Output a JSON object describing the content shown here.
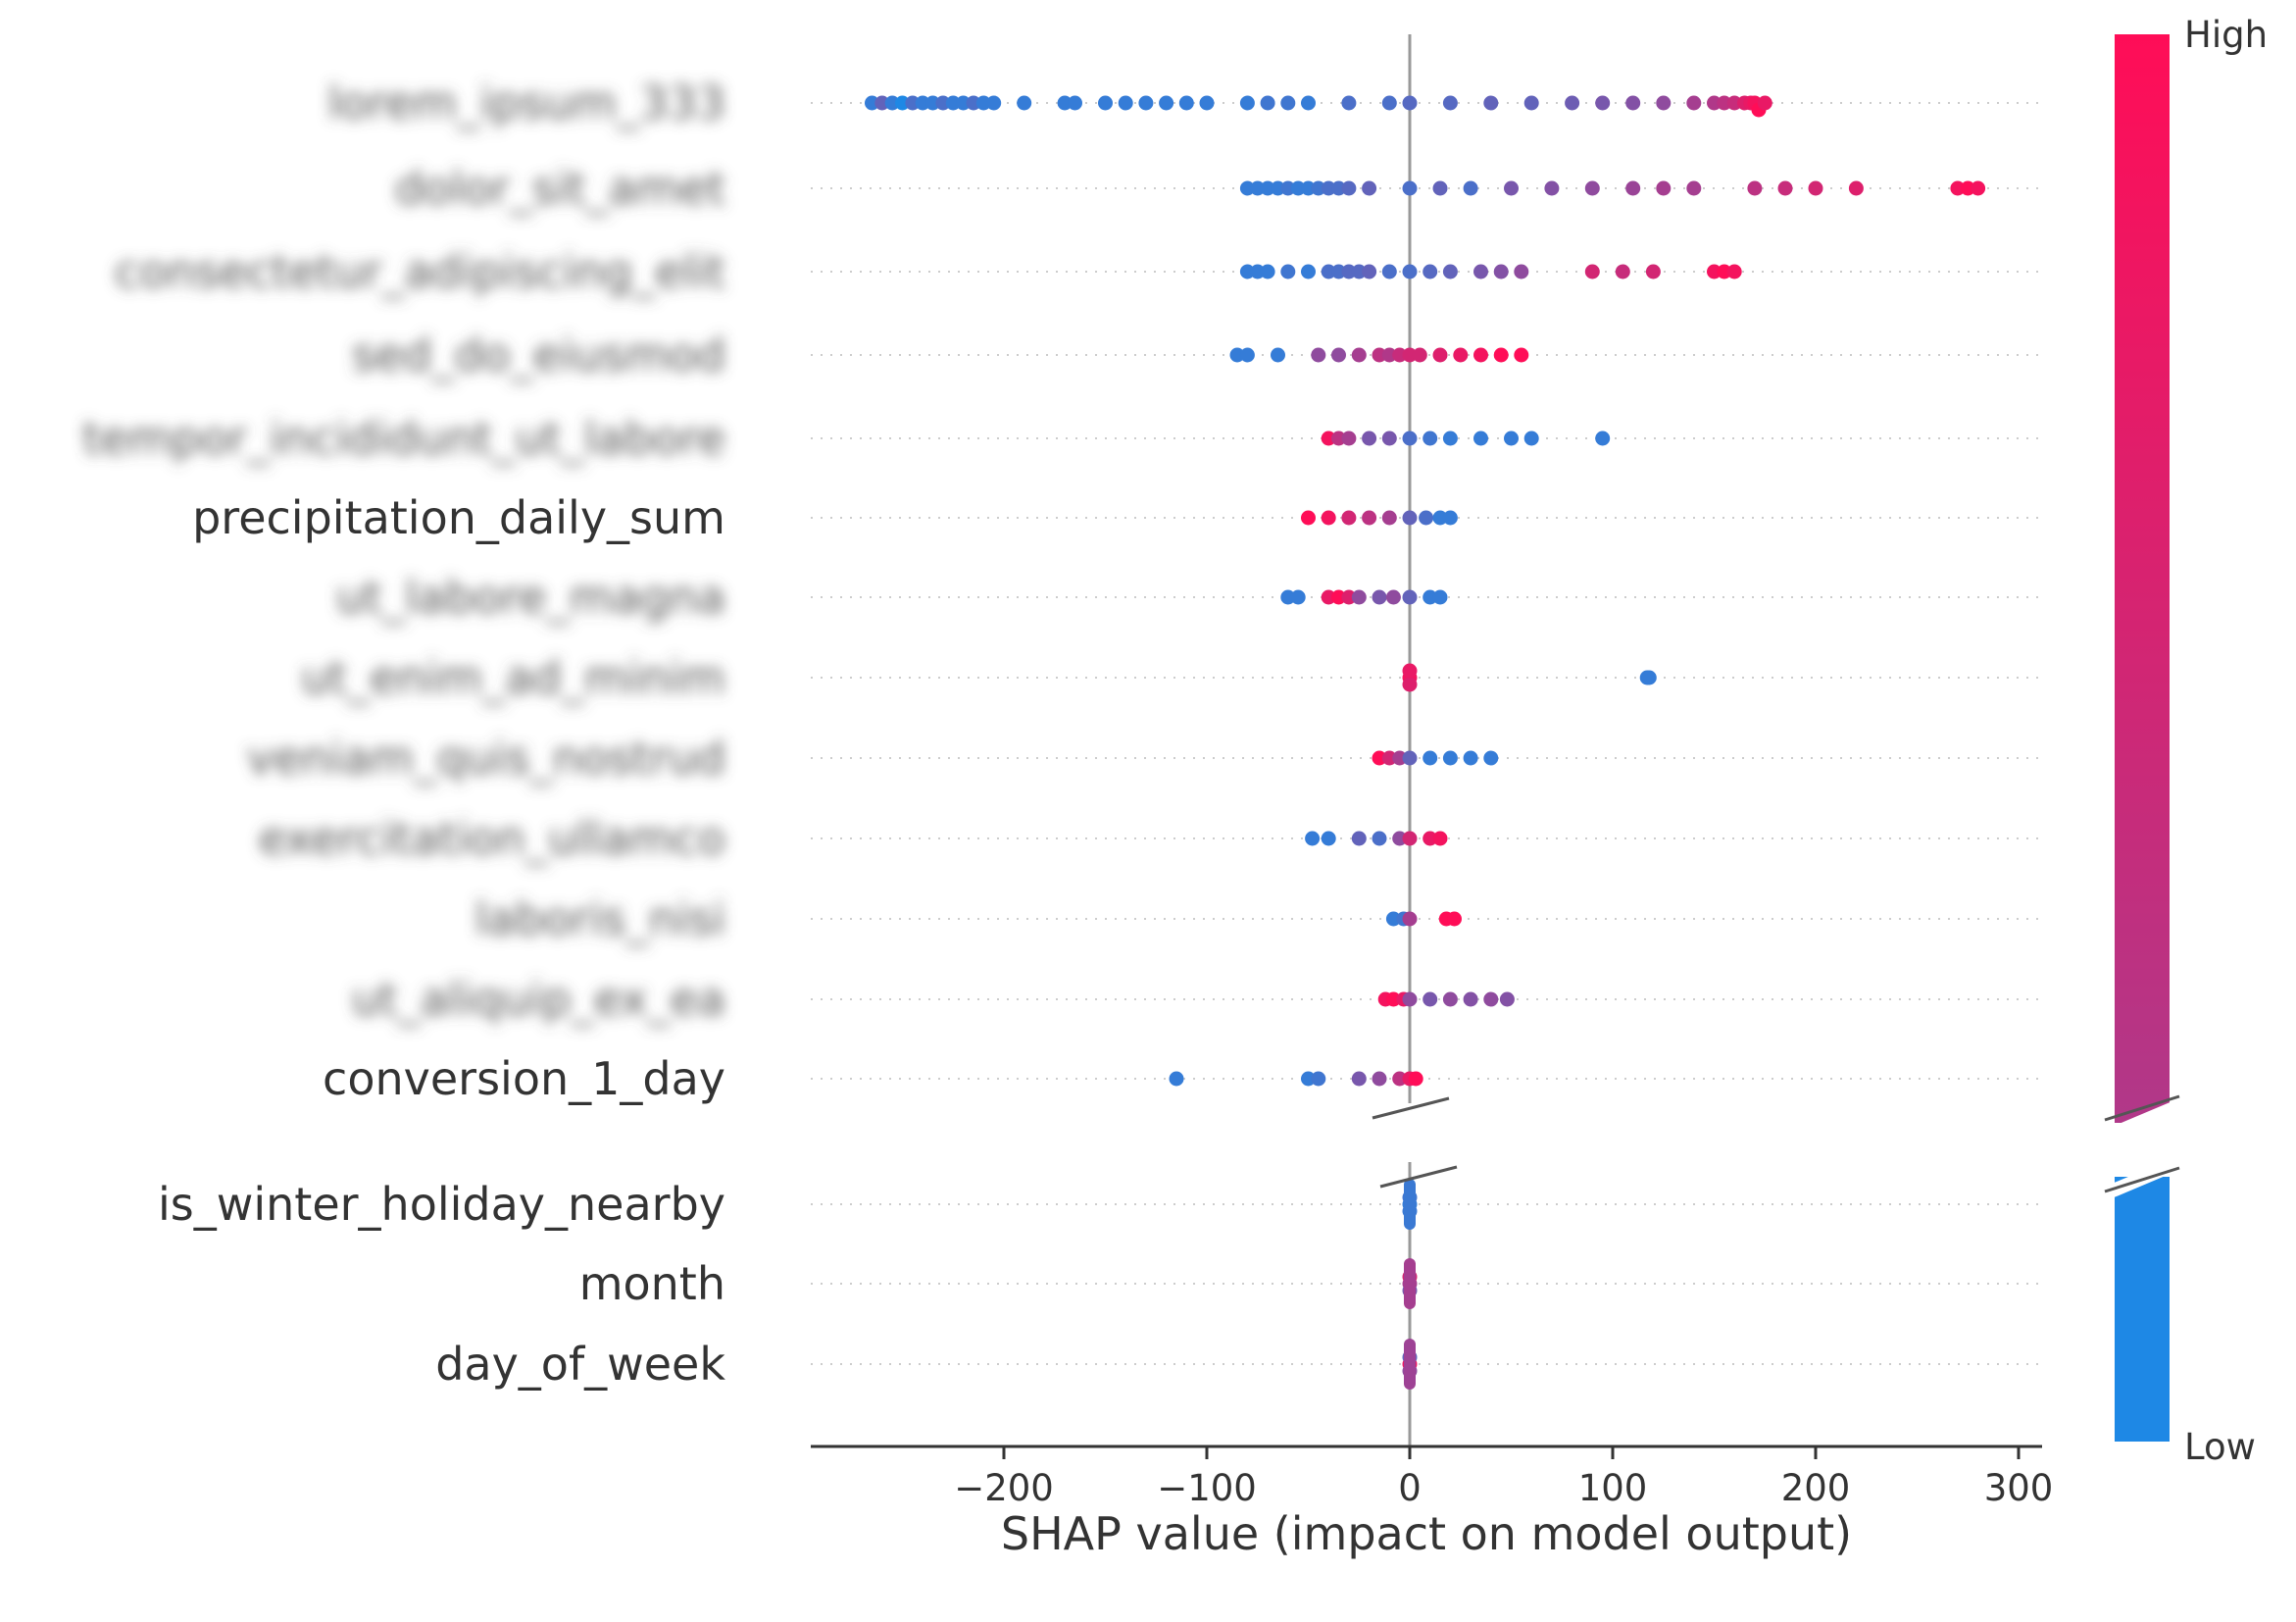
{
  "chart_data": {
    "type": "scatter",
    "subtype": "shap-beeswarm-summary",
    "xlabel": "SHAP value (impact on model output)",
    "xlim": [
      -300,
      310
    ],
    "xticks": [
      -200,
      -100,
      0,
      100,
      200,
      300
    ],
    "xtick_labels": [
      "−200",
      "−100",
      "0",
      "100",
      "200",
      "300"
    ],
    "colorbar": {
      "high_label": "High",
      "low_label": "Low",
      "high_color": "#ff0d57",
      "low_color": "#1e88e5"
    },
    "axis_break": true,
    "features": [
      {
        "label": "lorem_ipsum_333",
        "blurred": true,
        "points": [
          [
            -265,
            0.1
          ],
          [
            -260,
            0.3
          ],
          [
            -255,
            0.1
          ],
          [
            -250,
            0.0
          ],
          [
            -245,
            0.2
          ],
          [
            -240,
            0.1
          ],
          [
            -235,
            0.1
          ],
          [
            -230,
            0.2
          ],
          [
            -225,
            0.1
          ],
          [
            -220,
            0.1
          ],
          [
            -215,
            0.2
          ],
          [
            -210,
            0.1
          ],
          [
            -205,
            0.1
          ],
          [
            -190,
            0.1
          ],
          [
            -170,
            0.1
          ],
          [
            -165,
            0.1
          ],
          [
            -150,
            0.1
          ],
          [
            -140,
            0.1
          ],
          [
            -130,
            0.1
          ],
          [
            -120,
            0.1
          ],
          [
            -110,
            0.1
          ],
          [
            -100,
            0.1
          ],
          [
            -80,
            0.1
          ],
          [
            -70,
            0.15
          ],
          [
            -60,
            0.15
          ],
          [
            -50,
            0.1
          ],
          [
            -30,
            0.2
          ],
          [
            -10,
            0.2
          ],
          [
            0,
            0.25
          ],
          [
            20,
            0.25
          ],
          [
            40,
            0.3
          ],
          [
            60,
            0.3
          ],
          [
            80,
            0.35
          ],
          [
            95,
            0.4
          ],
          [
            110,
            0.45
          ],
          [
            125,
            0.5
          ],
          [
            140,
            0.6
          ],
          [
            150,
            0.65
          ],
          [
            155,
            0.7
          ],
          [
            160,
            0.75
          ],
          [
            165,
            0.85
          ],
          [
            168,
            0.9
          ],
          [
            170,
            0.95
          ],
          [
            172,
            1.0
          ],
          [
            175,
            0.9
          ]
        ]
      },
      {
        "label": "dolor_sit_amet",
        "blurred": true,
        "points": [
          [
            -80,
            0.1
          ],
          [
            -75,
            0.1
          ],
          [
            -70,
            0.1
          ],
          [
            -65,
            0.1
          ],
          [
            -60,
            0.15
          ],
          [
            -55,
            0.1
          ],
          [
            -50,
            0.1
          ],
          [
            -45,
            0.15
          ],
          [
            -40,
            0.2
          ],
          [
            -35,
            0.2
          ],
          [
            -30,
            0.25
          ],
          [
            -20,
            0.3
          ],
          [
            0,
            0.2
          ],
          [
            15,
            0.3
          ],
          [
            30,
            0.2
          ],
          [
            50,
            0.4
          ],
          [
            70,
            0.45
          ],
          [
            90,
            0.5
          ],
          [
            110,
            0.55
          ],
          [
            125,
            0.6
          ],
          [
            140,
            0.6
          ],
          [
            170,
            0.7
          ],
          [
            185,
            0.75
          ],
          [
            200,
            0.8
          ],
          [
            220,
            0.85
          ],
          [
            270,
            0.95
          ],
          [
            275,
            1.0
          ],
          [
            280,
            0.95
          ]
        ]
      },
      {
        "label": "consectetur_adipiscing_elit",
        "blurred": true,
        "points": [
          [
            -80,
            0.1
          ],
          [
            -75,
            0.1
          ],
          [
            -70,
            0.1
          ],
          [
            -60,
            0.15
          ],
          [
            -50,
            0.1
          ],
          [
            -40,
            0.2
          ],
          [
            -35,
            0.2
          ],
          [
            -30,
            0.25
          ],
          [
            -25,
            0.25
          ],
          [
            -20,
            0.3
          ],
          [
            -10,
            0.2
          ],
          [
            0,
            0.2
          ],
          [
            10,
            0.25
          ],
          [
            20,
            0.3
          ],
          [
            35,
            0.4
          ],
          [
            45,
            0.45
          ],
          [
            55,
            0.5
          ],
          [
            90,
            0.8
          ],
          [
            105,
            0.75
          ],
          [
            120,
            0.8
          ],
          [
            150,
            0.95
          ],
          [
            155,
            1.0
          ],
          [
            160,
            0.95
          ]
        ]
      },
      {
        "label": "sed_do_eiusmod",
        "blurred": true,
        "points": [
          [
            -85,
            0.1
          ],
          [
            -80,
            0.1
          ],
          [
            -65,
            0.1
          ],
          [
            -45,
            0.5
          ],
          [
            -35,
            0.5
          ],
          [
            -25,
            0.6
          ],
          [
            -15,
            0.7
          ],
          [
            -10,
            0.65
          ],
          [
            -5,
            0.75
          ],
          [
            0,
            0.8
          ],
          [
            5,
            0.8
          ],
          [
            15,
            0.85
          ],
          [
            25,
            0.9
          ],
          [
            35,
            0.95
          ],
          [
            45,
            1.0
          ],
          [
            55,
            1.0
          ]
        ]
      },
      {
        "label": "tempor_incididunt_ut_labore",
        "blurred": true,
        "points": [
          [
            -40,
            0.95
          ],
          [
            -35,
            0.7
          ],
          [
            -30,
            0.6
          ],
          [
            -20,
            0.4
          ],
          [
            -10,
            0.4
          ],
          [
            0,
            0.2
          ],
          [
            10,
            0.15
          ],
          [
            20,
            0.1
          ],
          [
            35,
            0.1
          ],
          [
            50,
            0.1
          ],
          [
            60,
            0.1
          ],
          [
            95,
            0.1
          ]
        ]
      },
      {
        "label": "precipitation_daily_sum",
        "blurred": false,
        "points": [
          [
            -50,
            1.0
          ],
          [
            -40,
            0.95
          ],
          [
            -30,
            0.8
          ],
          [
            -20,
            0.7
          ],
          [
            -10,
            0.6
          ],
          [
            0,
            0.3
          ],
          [
            8,
            0.2
          ],
          [
            15,
            0.1
          ],
          [
            20,
            0.1
          ]
        ]
      },
      {
        "label": "ut_labore_magna",
        "blurred": true,
        "points": [
          [
            -60,
            0.1
          ],
          [
            -55,
            0.1
          ],
          [
            -40,
            0.9
          ],
          [
            -35,
            1.0
          ],
          [
            -30,
            0.85
          ],
          [
            -25,
            0.5
          ],
          [
            -15,
            0.4
          ],
          [
            -8,
            0.5
          ],
          [
            0,
            0.3
          ],
          [
            10,
            0.1
          ],
          [
            15,
            0.1
          ]
        ]
      },
      {
        "label": "ut_enim_ad_minim",
        "blurred": true,
        "points": [
          [
            0,
            0.95
          ],
          [
            0,
            0.85
          ],
          [
            0,
            0.9
          ],
          [
            117,
            0.1
          ],
          [
            118,
            0.1
          ]
        ]
      },
      {
        "label": "veniam_quis_nostrud",
        "blurred": true,
        "points": [
          [
            -15,
            1.0
          ],
          [
            -10,
            0.8
          ],
          [
            -5,
            0.6
          ],
          [
            0,
            0.3
          ],
          [
            10,
            0.1
          ],
          [
            20,
            0.1
          ],
          [
            30,
            0.1
          ],
          [
            40,
            0.1
          ]
        ]
      },
      {
        "label": "exercitation_ullamco",
        "blurred": true,
        "points": [
          [
            -48,
            0.1
          ],
          [
            -40,
            0.1
          ],
          [
            -25,
            0.3
          ],
          [
            -15,
            0.2
          ],
          [
            -5,
            0.5
          ],
          [
            0,
            0.8
          ],
          [
            10,
            0.9
          ],
          [
            15,
            0.95
          ]
        ]
      },
      {
        "label": "laboris_nisi",
        "blurred": true,
        "points": [
          [
            -8,
            0.1
          ],
          [
            -3,
            0.15
          ],
          [
            0,
            0.6
          ],
          [
            18,
            1.0
          ],
          [
            22,
            1.0
          ]
        ]
      },
      {
        "label": "ut_aliquip_ex_ea",
        "blurred": true,
        "points": [
          [
            -12,
            0.95
          ],
          [
            -8,
            1.0
          ],
          [
            -3,
            0.9
          ],
          [
            0,
            0.5
          ],
          [
            10,
            0.4
          ],
          [
            20,
            0.5
          ],
          [
            30,
            0.45
          ],
          [
            40,
            0.5
          ],
          [
            48,
            0.45
          ]
        ]
      },
      {
        "label": "conversion_1_day",
        "blurred": false,
        "points": [
          [
            -115,
            0.1
          ],
          [
            -50,
            0.1
          ],
          [
            -45,
            0.15
          ],
          [
            -25,
            0.4
          ],
          [
            -15,
            0.5
          ],
          [
            -5,
            0.7
          ],
          [
            0,
            0.9
          ],
          [
            3,
            1.0
          ]
        ]
      },
      {
        "label": "is_winter_holiday_nearby",
        "blurred": false,
        "points": [
          [
            0,
            0.1
          ],
          [
            0,
            0.12
          ],
          [
            0,
            0.15
          ]
        ]
      },
      {
        "label": "month",
        "blurred": false,
        "points": [
          [
            0,
            0.6
          ],
          [
            0,
            0.4
          ],
          [
            0,
            0.8
          ]
        ]
      },
      {
        "label": "day_of_week",
        "blurred": false,
        "points": [
          [
            0,
            0.9
          ],
          [
            0,
            0.5
          ],
          [
            0,
            0.3
          ]
        ]
      }
    ]
  }
}
